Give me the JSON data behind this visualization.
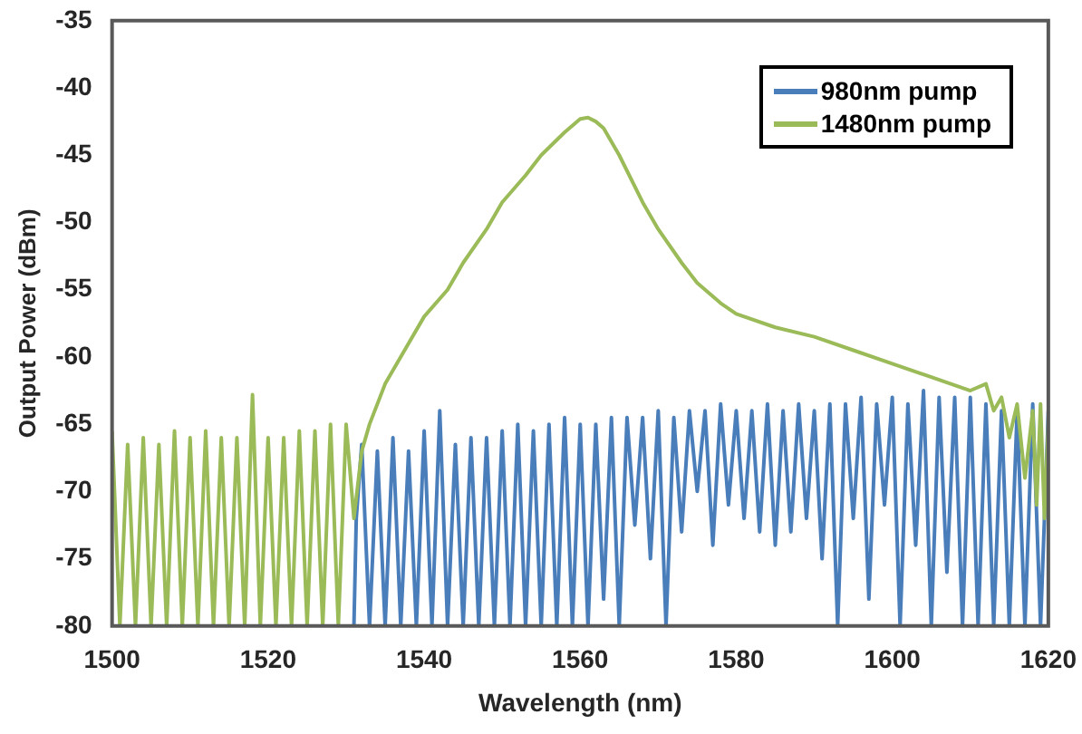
{
  "chart_data": {
    "type": "line",
    "xlabel": "Wavelength (nm)",
    "ylabel": "Output Power (dBm)",
    "xlim": [
      1500,
      1620
    ],
    "xticks": [
      1500,
      1520,
      1540,
      1560,
      1580,
      1600,
      1620
    ],
    "ylim": [
      -80,
      -35
    ],
    "yticks": [
      -80,
      -75,
      -70,
      -65,
      -60,
      -55,
      -50,
      -45,
      -40,
      -35
    ],
    "grid": false,
    "legend": "top right",
    "marker": "none",
    "line_style": "solid",
    "series": [
      {
        "name": "980nm pump",
        "color": "#4a7ebb",
        "x": [
          1531,
          1531.3,
          1532,
          1533,
          1534,
          1535,
          1536,
          1537,
          1538,
          1539,
          1540,
          1541,
          1542,
          1543,
          1544,
          1545,
          1546,
          1547,
          1548,
          1549,
          1550,
          1551,
          1552,
          1553,
          1554,
          1555,
          1556,
          1557,
          1558,
          1559,
          1560,
          1561,
          1562,
          1563,
          1564,
          1565,
          1566,
          1567,
          1568,
          1569,
          1570,
          1571,
          1572,
          1573,
          1574,
          1575,
          1576,
          1577,
          1578,
          1579,
          1580,
          1581,
          1582,
          1583,
          1584,
          1585,
          1586,
          1587,
          1588,
          1589,
          1590,
          1591,
          1592,
          1593,
          1594,
          1595,
          1596,
          1597,
          1598,
          1599,
          1600,
          1601,
          1602,
          1603,
          1604,
          1605,
          1606,
          1607,
          1608,
          1609,
          1610,
          1611,
          1612,
          1613,
          1614,
          1615,
          1616,
          1617,
          1618,
          1619,
          1620
        ],
        "values": [
          -80,
          -72,
          -66.5,
          -80,
          -67,
          -80,
          -66,
          -80,
          -67,
          -80,
          -65.5,
          -80,
          -64,
          -80,
          -66.5,
          -80,
          -66,
          -80,
          -66,
          -80,
          -65.5,
          -80,
          -65,
          -80,
          -65.5,
          -80,
          -65,
          -80,
          -64.5,
          -80,
          -65,
          -80,
          -65,
          -78,
          -64.5,
          -80,
          -64.5,
          -72.5,
          -64.5,
          -75,
          -64,
          -80,
          -64.5,
          -73,
          -64,
          -70,
          -64,
          -74,
          -63.5,
          -71,
          -64,
          -72,
          -64,
          -73,
          -63.5,
          -74,
          -64,
          -73,
          -63.5,
          -72,
          -64,
          -75,
          -63.5,
          -80,
          -63.5,
          -72,
          -63,
          -78,
          -63.5,
          -71,
          -63,
          -80,
          -63.5,
          -74,
          -62.5,
          -80,
          -63,
          -76,
          -63,
          -80,
          -63,
          -80,
          -63.5,
          -80,
          -64,
          -80,
          -64,
          -80,
          -63.5,
          -80,
          -64
        ]
      },
      {
        "name": "1480nm pump",
        "color": "#9bbb59",
        "x": [
          1500,
          1501,
          1502,
          1503,
          1504,
          1505,
          1506,
          1507,
          1508,
          1509,
          1510,
          1511,
          1512,
          1513,
          1514,
          1515,
          1516,
          1517,
          1518,
          1519,
          1520,
          1521,
          1522,
          1523,
          1524,
          1525,
          1526,
          1527,
          1528,
          1529,
          1530,
          1531,
          1532,
          1533,
          1535,
          1538,
          1540,
          1543,
          1545,
          1548,
          1550,
          1553,
          1555,
          1558,
          1560,
          1561,
          1562,
          1563,
          1565,
          1568,
          1570,
          1573,
          1575,
          1578,
          1580,
          1585,
          1590,
          1595,
          1600,
          1605,
          1610,
          1612,
          1613,
          1614,
          1615,
          1616,
          1617,
          1618,
          1618.5,
          1619,
          1619.5,
          1620
        ],
        "values": [
          -65.5,
          -80,
          -66.5,
          -80,
          -66,
          -80,
          -66.5,
          -80,
          -65.5,
          -80,
          -66,
          -80,
          -65.5,
          -80,
          -66,
          -80,
          -66,
          -80,
          -62.8,
          -80,
          -66,
          -80,
          -66,
          -80,
          -65.5,
          -80,
          -65.5,
          -80,
          -65,
          -80,
          -65,
          -72,
          -67,
          -65,
          -62,
          -59,
          -57,
          -55,
          -53,
          -50.5,
          -48.5,
          -46.5,
          -45,
          -43.3,
          -42.3,
          -42.2,
          -42.5,
          -43,
          -45,
          -48.5,
          -50.5,
          -53,
          -54.5,
          -56,
          -56.8,
          -57.8,
          -58.5,
          -59.5,
          -60.5,
          -61.5,
          -62.5,
          -62,
          -64,
          -63,
          -66,
          -63.5,
          -69,
          -64,
          -71,
          -63.5,
          -72,
          -65
        ]
      }
    ]
  }
}
